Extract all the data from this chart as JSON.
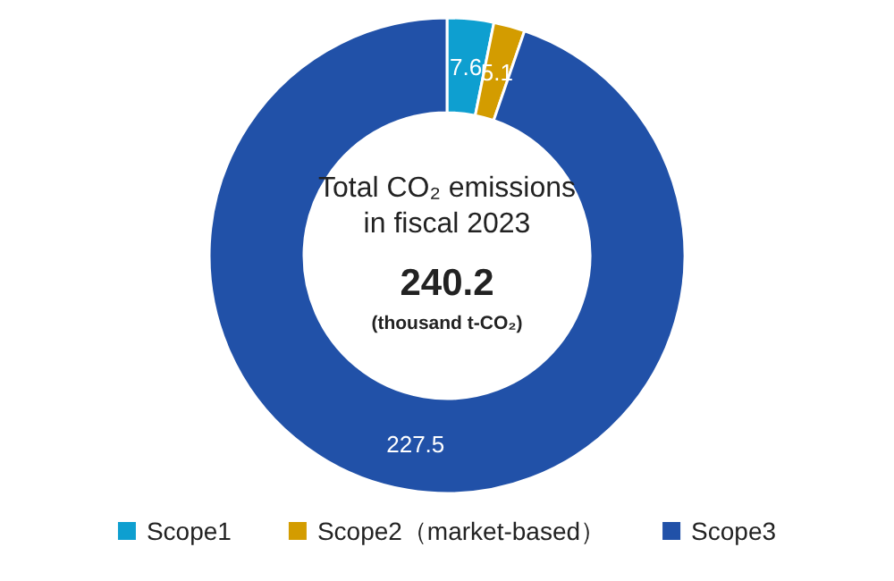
{
  "chart_data": {
    "type": "donut",
    "categories": [
      "Scope1",
      "Scope2（market-based）",
      "Scope3"
    ],
    "values": [
      7.6,
      5.1,
      227.5
    ],
    "colors": [
      "#0e9fd0",
      "#d39c00",
      "#2151a8"
    ],
    "data_labels": true,
    "legend": "bottom",
    "annotations": [
      "Total CO₂ emissions",
      "in fiscal 2023",
      "240.2",
      "(thousand t-CO₂)"
    ]
  }
}
